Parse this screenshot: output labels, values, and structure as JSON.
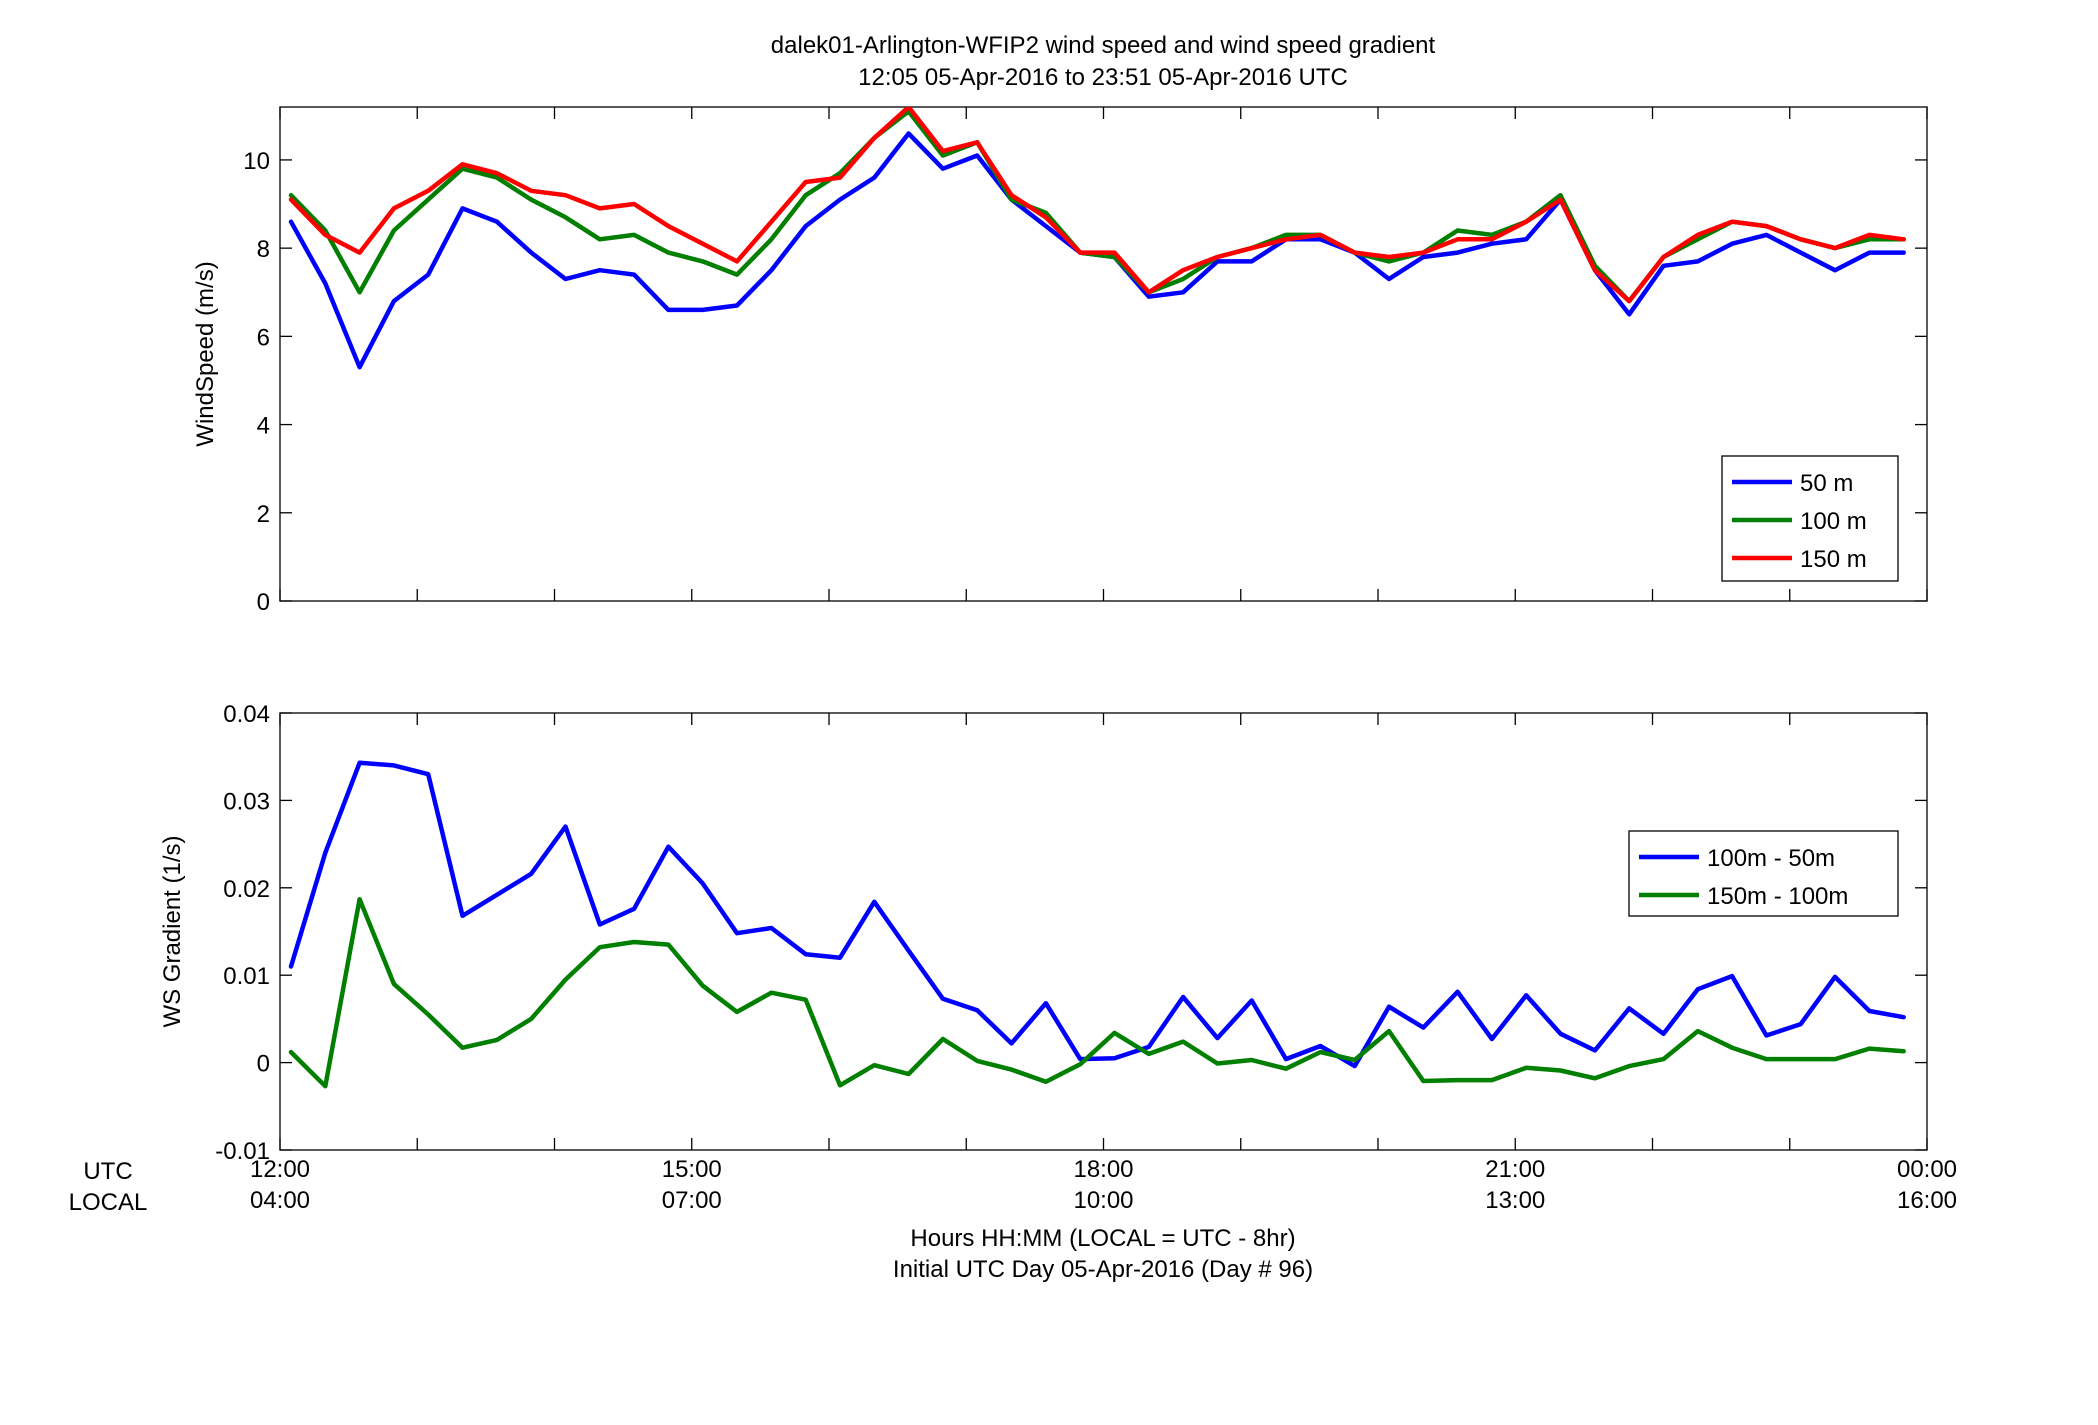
{
  "title": {
    "line1": "dalek01-Arlington-WFIP2  wind speed and wind speed gradient",
    "line2": "12:05 05-Apr-2016 to 23:51 05-Apr-2016  UTC"
  },
  "x_axis": {
    "row_labels": [
      "UTC",
      "LOCAL"
    ],
    "utc_ticks": [
      "12:00",
      "15:00",
      "18:00",
      "21:00",
      "00:00"
    ],
    "local_ticks": [
      "04:00",
      "07:00",
      "10:00",
      "13:00",
      "16:00"
    ],
    "label_line1": "Hours HH:MM  (LOCAL = UTC - 8hr)",
    "label_line2": "Initial UTC Day 05-Apr-2016 (Day # 96)"
  },
  "colors": {
    "blue": "#0000ff",
    "green": "#007f00",
    "red": "#ff0000"
  },
  "chart_data": [
    {
      "type": "line",
      "ylabel": "WindSpeed (m/s)",
      "xlim_hours_utc": [
        12,
        24
      ],
      "ylim": [
        0,
        11.2
      ],
      "yticks": [
        0,
        2,
        4,
        6,
        8,
        10
      ],
      "ytick_labels": [
        "0",
        "2",
        "4",
        "6",
        "8",
        "10"
      ],
      "legend_position": "lower-right",
      "x": [
        12.08,
        12.33,
        12.58,
        12.83,
        13.08,
        13.33,
        13.58,
        13.83,
        14.08,
        14.33,
        14.58,
        14.83,
        15.08,
        15.33,
        15.58,
        15.83,
        16.08,
        16.33,
        16.58,
        16.83,
        17.08,
        17.33,
        17.58,
        17.83,
        18.08,
        18.33,
        18.58,
        18.83,
        19.08,
        19.33,
        19.58,
        19.83,
        20.08,
        20.33,
        20.58,
        20.83,
        21.08,
        21.33,
        21.58,
        21.83,
        22.08,
        22.33,
        22.58,
        22.83,
        23.08,
        23.33,
        23.58,
        23.83
      ],
      "series": [
        {
          "name": "50 m",
          "color": "#0000ff",
          "values": [
            8.6,
            7.2,
            5.3,
            6.8,
            7.4,
            8.9,
            8.6,
            7.9,
            7.3,
            7.5,
            7.4,
            6.6,
            6.6,
            6.7,
            7.5,
            8.5,
            9.1,
            9.6,
            10.6,
            9.8,
            10.1,
            9.1,
            8.5,
            7.9,
            7.8,
            6.9,
            7.0,
            7.7,
            7.7,
            8.2,
            8.2,
            7.9,
            7.3,
            7.8,
            7.9,
            8.1,
            8.2,
            9.1,
            7.5,
            6.5,
            7.6,
            7.7,
            8.1,
            8.3,
            7.9,
            7.5,
            7.9,
            7.9
          ]
        },
        {
          "name": "100 m",
          "color": "#007f00",
          "values": [
            9.2,
            8.4,
            7.0,
            8.4,
            9.1,
            9.8,
            9.6,
            9.1,
            8.7,
            8.2,
            8.3,
            7.9,
            7.7,
            7.4,
            8.2,
            9.2,
            9.7,
            10.5,
            11.1,
            10.1,
            10.4,
            9.1,
            8.8,
            7.9,
            7.8,
            7.0,
            7.3,
            7.8,
            8.0,
            8.3,
            8.3,
            7.9,
            7.7,
            7.9,
            8.4,
            8.3,
            8.6,
            9.2,
            7.6,
            6.8,
            7.8,
            8.2,
            8.6,
            8.5,
            8.2,
            8.0,
            8.2,
            8.2
          ]
        },
        {
          "name": "150 m",
          "color": "#ff0000",
          "values": [
            9.1,
            8.3,
            7.9,
            8.9,
            9.3,
            9.9,
            9.7,
            9.3,
            9.2,
            8.9,
            9.0,
            8.5,
            8.1,
            7.7,
            8.6,
            9.5,
            9.6,
            10.5,
            11.2,
            10.2,
            10.4,
            9.2,
            8.7,
            7.9,
            7.9,
            7.0,
            7.5,
            7.8,
            8.0,
            8.2,
            8.3,
            7.9,
            7.8,
            7.9,
            8.2,
            8.2,
            8.6,
            9.1,
            7.5,
            6.8,
            7.8,
            8.3,
            8.6,
            8.5,
            8.2,
            8.0,
            8.3,
            8.2
          ]
        }
      ]
    },
    {
      "type": "line",
      "ylabel": "WS Gradient (1/s)",
      "xlim_hours_utc": [
        12,
        24
      ],
      "ylim": [
        -0.01,
        0.04
      ],
      "yticks": [
        -0.01,
        0,
        0.01,
        0.02,
        0.03,
        0.04
      ],
      "ytick_labels": [
        "-0.01",
        "0",
        "0.01",
        "0.02",
        "0.03",
        "0.04"
      ],
      "legend_position": "upper-right",
      "x": [
        12.08,
        12.33,
        12.58,
        12.83,
        13.08,
        13.33,
        13.58,
        13.83,
        14.08,
        14.33,
        14.58,
        14.83,
        15.08,
        15.33,
        15.58,
        15.83,
        16.08,
        16.33,
        16.58,
        16.83,
        17.08,
        17.33,
        17.58,
        17.83,
        18.08,
        18.33,
        18.58,
        18.83,
        19.08,
        19.33,
        19.58,
        19.83,
        20.08,
        20.33,
        20.58,
        20.83,
        21.08,
        21.33,
        21.58,
        21.83,
        22.08,
        22.33,
        22.58,
        22.83,
        23.08,
        23.33,
        23.58,
        23.83
      ],
      "series": [
        {
          "name": "100m - 50m",
          "color": "#0000ff",
          "values": [
            0.011,
            0.024,
            0.0343,
            0.034,
            0.033,
            0.0168,
            0.0192,
            0.0216,
            0.027,
            0.0158,
            0.0176,
            0.0247,
            0.0205,
            0.0148,
            0.0154,
            0.0124,
            0.012,
            0.0184,
            0.0128,
            0.0073,
            0.006,
            0.0022,
            0.0068,
            0.0004,
            0.0005,
            0.0018,
            0.0075,
            0.0028,
            0.0071,
            0.0004,
            0.0019,
            -0.0004,
            0.0064,
            0.004,
            0.0081,
            0.0027,
            0.0077,
            0.0033,
            0.0014,
            0.0062,
            0.0033,
            0.0084,
            0.0099,
            0.0031,
            0.0044,
            0.0098,
            0.0059,
            0.0052
          ]
        },
        {
          "name": "150m - 100m",
          "color": "#007f00",
          "values": [
            0.0012,
            -0.0027,
            0.0187,
            0.009,
            0.0055,
            0.0017,
            0.0026,
            0.005,
            0.0095,
            0.0132,
            0.0138,
            0.0135,
            0.0088,
            0.0058,
            0.008,
            0.0072,
            -0.0026,
            -0.0003,
            -0.0013,
            0.0027,
            0.0002,
            -0.0008,
            -0.0022,
            -0.0002,
            0.0034,
            0.001,
            0.0024,
            -0.0001,
            0.0003,
            -0.0007,
            0.0012,
            0.0003,
            0.0036,
            -0.0021,
            -0.002,
            -0.002,
            -0.0006,
            -0.0009,
            -0.0018,
            -0.0004,
            0.0004,
            0.0036,
            0.0017,
            0.0004,
            0.0004,
            0.0004,
            0.0016,
            0.0013
          ]
        }
      ]
    }
  ]
}
